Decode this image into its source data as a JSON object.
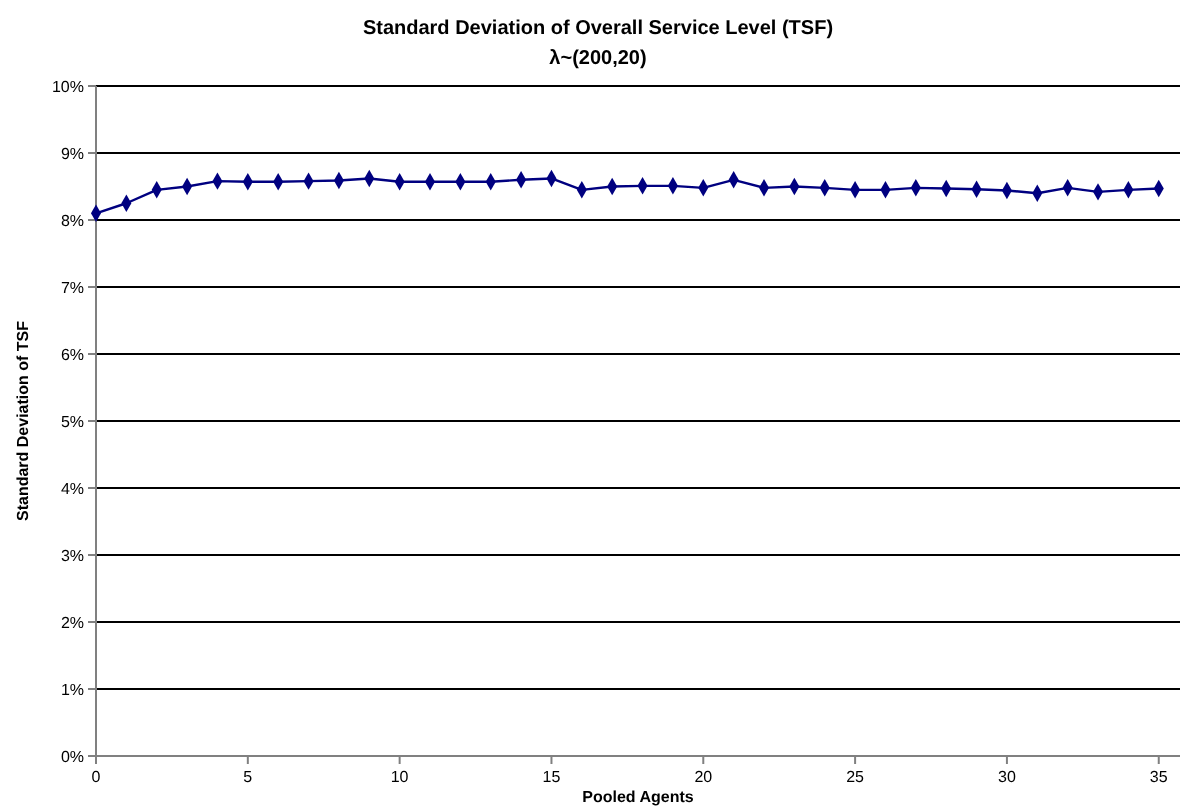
{
  "chart_data": {
    "type": "line",
    "title": "Standard Deviation of Overall Service Level (TSF)",
    "subtitle": "λ~(200,20)",
    "xlabel": "Pooled Agents",
    "ylabel": "Standard Deviation of TSF",
    "x": [
      0,
      1,
      2,
      3,
      4,
      5,
      6,
      7,
      8,
      9,
      10,
      11,
      12,
      13,
      14,
      15,
      16,
      17,
      18,
      19,
      20,
      21,
      22,
      23,
      24,
      25,
      26,
      27,
      28,
      29,
      30,
      31,
      32,
      33,
      34,
      35
    ],
    "series": [
      {
        "color": "#000080",
        "values": [
          8.1,
          8.25,
          8.45,
          8.5,
          8.58,
          8.57,
          8.57,
          8.58,
          8.59,
          8.62,
          8.57,
          8.57,
          8.57,
          8.57,
          8.6,
          8.62,
          8.45,
          8.5,
          8.51,
          8.51,
          8.48,
          8.6,
          8.48,
          8.5,
          8.48,
          8.45,
          8.45,
          8.48,
          8.47,
          8.46,
          8.44,
          8.4,
          8.48,
          8.42,
          8.45,
          8.47
        ]
      }
    ],
    "xlim": [
      0,
      35.7
    ],
    "xticks": [
      0,
      5,
      10,
      15,
      20,
      25,
      30,
      35
    ],
    "ylim": [
      0,
      10
    ],
    "yticks": [
      {
        "value": 0,
        "label": "0%"
      },
      {
        "value": 1,
        "label": "1%"
      },
      {
        "value": 2,
        "label": "2%"
      },
      {
        "value": 3,
        "label": "3%"
      },
      {
        "value": 4,
        "label": "4%"
      },
      {
        "value": 5,
        "label": "5%"
      },
      {
        "value": 6,
        "label": "6%"
      },
      {
        "value": 7,
        "label": "7%"
      },
      {
        "value": 8,
        "label": "8%"
      },
      {
        "value": 9,
        "label": "9%"
      },
      {
        "value": 10,
        "label": "10%"
      }
    ],
    "grid": "y",
    "marker": "diamond",
    "line_style": "solid"
  }
}
